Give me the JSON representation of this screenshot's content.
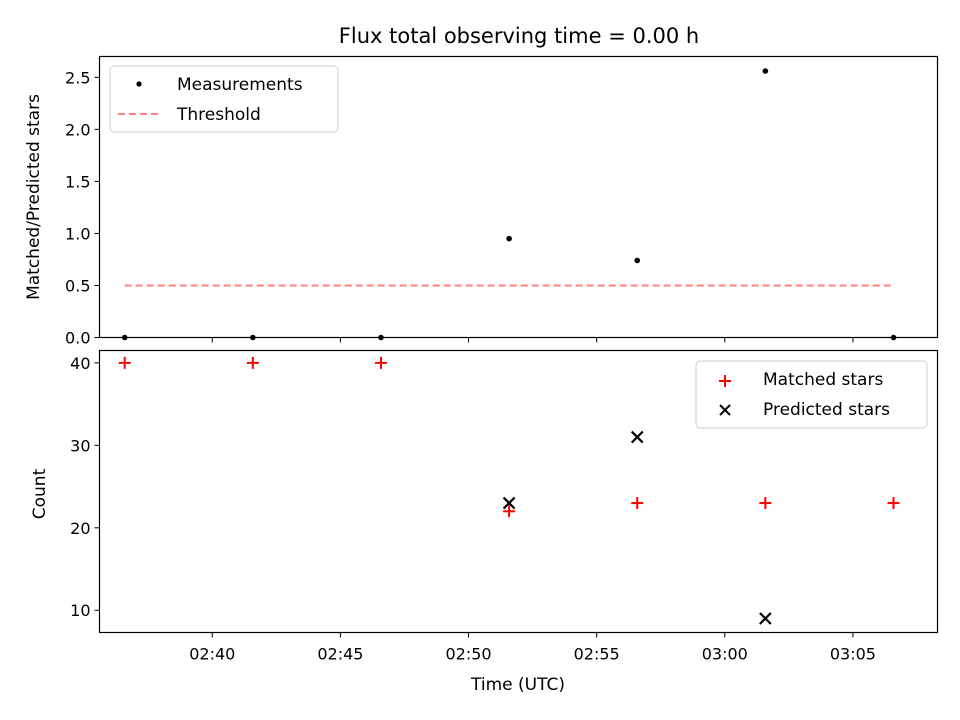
{
  "figure": {
    "title": "Flux total observing time = 0.00 h"
  },
  "chart_data": [
    {
      "type": "scatter",
      "id": "ratio",
      "ylabel": "Matched/Predicted stars",
      "xlabel": "",
      "xlim_minutes": [
        155.6,
        188.3
      ],
      "ylim": [
        0,
        2.7
      ],
      "yticks": [
        0.0,
        0.5,
        1.0,
        1.5,
        2.0,
        2.5
      ],
      "ytick_labels": [
        "0.0",
        "0.5",
        "1.0",
        "1.5",
        "2.0",
        "2.5"
      ],
      "x_labels_shown": false,
      "legend": {
        "position": "upper left",
        "entries": [
          "Measurements",
          "Threshold"
        ]
      },
      "threshold": {
        "name": "Threshold",
        "y": 0.5,
        "x": [
          "02:36:35",
          "03:06:35"
        ],
        "color": "#ff7f7f",
        "style": "dashed"
      },
      "series": [
        {
          "name": "Measurements",
          "marker": "dot",
          "color": "#000000",
          "x": [
            "02:36:35",
            "02:41:35",
            "02:46:35",
            "02:51:35",
            "02:56:35",
            "03:01:35",
            "03:06:35"
          ],
          "y": [
            0.0,
            0.0,
            0.0,
            0.95,
            0.74,
            2.56,
            0.0
          ]
        }
      ]
    },
    {
      "type": "scatter",
      "id": "counts",
      "ylabel": "Count",
      "xlabel": "Time (UTC)",
      "xlim_minutes": [
        155.6,
        188.3
      ],
      "ylim": [
        7.3,
        41.5
      ],
      "yticks": [
        10,
        20,
        30,
        40
      ],
      "ytick_labels": [
        "10",
        "20",
        "30",
        "40"
      ],
      "xticks": [
        "02:40",
        "02:45",
        "02:50",
        "02:55",
        "03:00",
        "03:05"
      ],
      "legend": {
        "position": "upper right",
        "entries": [
          "Matched stars",
          "Predicted stars"
        ]
      },
      "series": [
        {
          "name": "Matched stars",
          "marker": "plus",
          "color": "#ff0000",
          "x": [
            "02:36:35",
            "02:41:35",
            "02:46:35",
            "02:51:35",
            "02:56:35",
            "03:01:35",
            "03:06:35"
          ],
          "y": [
            40,
            40,
            40,
            22,
            23,
            23,
            23
          ]
        },
        {
          "name": "Predicted stars",
          "marker": "x",
          "color": "#000000",
          "x": [
            "02:51:35",
            "02:56:35",
            "03:01:35"
          ],
          "y": [
            23,
            31,
            9
          ]
        }
      ]
    }
  ]
}
